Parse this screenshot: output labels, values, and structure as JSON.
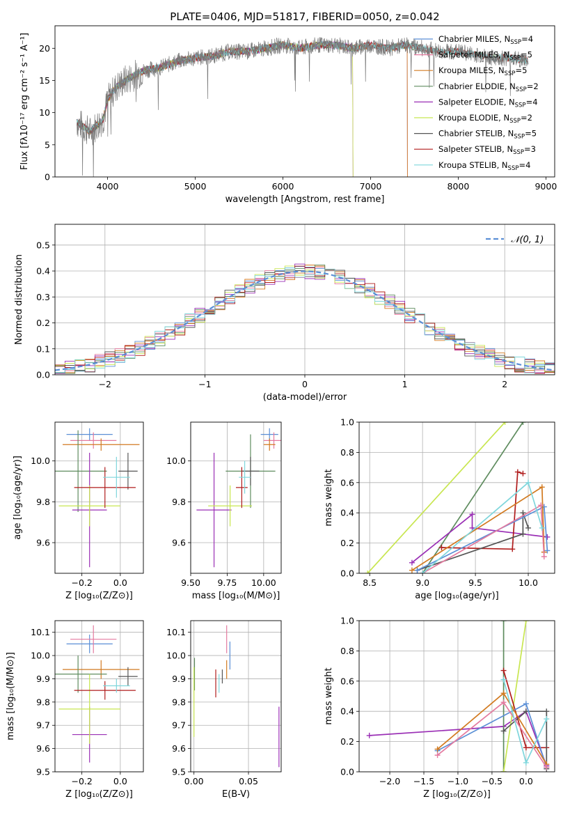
{
  "colors": {
    "c_miles": "#5b8fd6",
    "s_miles": "#e47a9f",
    "k_miles": "#d27a20",
    "c_elodie": "#5f8c5f",
    "s_elodie": "#9a2fb5",
    "k_elodie": "#c8e650",
    "c_stelib": "#555555",
    "s_stelib": "#b01c1c",
    "k_stelib": "#7fd6dc",
    "normal": "#5b8fd6"
  },
  "chart_data": [
    {
      "id": "spectrum",
      "type": "line",
      "title": "PLATE=0406, MJD=51817, FIBERID=0050, z=0.042",
      "xlabel": "wavelength [Angstrom, rest frame]",
      "ylabel": "Flux [fλ10⁻¹⁷ erg cm⁻² s⁻¹ A⁻¹]",
      "xlim": [
        3400,
        9100
      ],
      "ylim": [
        0,
        23.5
      ],
      "xticks": [
        "4000",
        "5000",
        "6000",
        "7000",
        "8000",
        "9000"
      ],
      "yticks": [
        "0",
        "5",
        "10",
        "15",
        "20"
      ],
      "grid": false,
      "legend_position": "top-right",
      "wavelength_range": [
        3650,
        8800
      ],
      "continuum": {
        "wavelength": [
          3650,
          3800,
          3950,
          4000,
          4100,
          4200,
          4400,
          4600,
          4800,
          5000,
          5200,
          5400,
          5600,
          5800,
          6000,
          6200,
          6400,
          6600,
          6800,
          7000,
          7200,
          7400,
          7600,
          7800,
          8000,
          8200,
          8400,
          8600,
          8800
        ],
        "flux": [
          8.5,
          7.0,
          9.0,
          12.0,
          14.0,
          15.0,
          16.5,
          17.0,
          18.0,
          18.5,
          18.8,
          19.5,
          19.5,
          20.0,
          20.5,
          20.0,
          20.5,
          20.5,
          20.0,
          20.5,
          20.0,
          20.5,
          20.0,
          19.5,
          19.5,
          19.0,
          18.5,
          18.5,
          18.0
        ]
      },
      "series": [
        {
          "name": "Chabrier MILES, N_SSP=4",
          "label_main": "Chabrier MILES, N",
          "label_sub": "SSP",
          "label_end": "=4",
          "color_key": "c_miles"
        },
        {
          "name": "Salpeter MILES, N_SSP=5",
          "label_main": "Salpeter MILES, N",
          "label_sub": "SSP",
          "label_end": "=5",
          "color_key": "s_miles"
        },
        {
          "name": "Kroupa MILES, N_SSP=5",
          "label_main": "Kroupa MILES, N",
          "label_sub": "SSP",
          "label_end": "=5",
          "color_key": "k_miles"
        },
        {
          "name": "Chabrier ELODIE, N_SSP=2",
          "label_main": "Chabrier ELODIE, N",
          "label_sub": "SSP",
          "label_end": "=2",
          "color_key": "c_elodie"
        },
        {
          "name": "Salpeter ELODIE, N_SSP=4",
          "label_main": "Salpeter ELODIE, N",
          "label_sub": "SSP",
          "label_end": "=4",
          "color_key": "s_elodie"
        },
        {
          "name": "Kroupa ELODIE, N_SSP=2",
          "label_main": "Kroupa ELODIE, N",
          "label_sub": "SSP",
          "label_end": "=2",
          "color_key": "k_elodie"
        },
        {
          "name": "Chabrier STELIB, N_SSP=5",
          "label_main": "Chabrier STELIB, N",
          "label_sub": "SSP",
          "label_end": "=5",
          "color_key": "c_stelib"
        },
        {
          "name": "Salpeter STELIB, N_SSP=3",
          "label_main": "Salpeter STELIB, N",
          "label_sub": "SSP",
          "label_end": "=3",
          "color_key": "s_stelib"
        },
        {
          "name": "Kroupa STELIB, N_SSP=4",
          "label_main": "Kroupa STELIB, N",
          "label_sub": "SSP",
          "label_end": "=4",
          "color_key": "k_stelib"
        }
      ],
      "model_edges": {
        "k_elodie": 6800,
        "s_elodie": 6800,
        "k_miles": 7420,
        "s_miles": 7420,
        "c_miles": 7420
      }
    },
    {
      "id": "residuals",
      "type": "histogram",
      "xlabel": "(data-model)/error",
      "ylabel": "Normed distribution",
      "xlim": [
        -2.5,
        2.5
      ],
      "ylim": [
        0,
        0.58
      ],
      "xticks": [
        "−2",
        "−1",
        "0",
        "1",
        "2"
      ],
      "yticks": [
        "0.0",
        "0.1",
        "0.2",
        "0.3",
        "0.4",
        "0.5"
      ],
      "grid": true,
      "legend_position": "top-right",
      "legend_label": "𝒩(0, 1)",
      "bin_width": 0.1
    },
    {
      "id": "age_vs_Z",
      "type": "errorbar",
      "xlabel": "Z [log₁₀(Z/Z⊙)]",
      "ylabel": "age  [log₁₀(age/yr)]",
      "xlim": [
        -0.34,
        0.12
      ],
      "ylim": [
        9.45,
        10.19
      ],
      "xticks": [
        "−0.2",
        "0.0"
      ],
      "yticks": [
        "9.6",
        "9.8",
        "10.0"
      ],
      "grid": true,
      "points": [
        {
          "s": "c_miles",
          "x": -0.16,
          "xerr": 0.12,
          "y": 10.13,
          "yerr": 0.03
        },
        {
          "s": "s_miles",
          "x": -0.14,
          "xerr": 0.12,
          "y": 10.1,
          "yerr": 0.04
        },
        {
          "s": "k_miles",
          "x": -0.1,
          "xerr": 0.2,
          "y": 10.08,
          "yerr": 0.03
        },
        {
          "s": "c_elodie",
          "x": -0.22,
          "xerr": 0.15,
          "y": 9.95,
          "yerr": 0.2
        },
        {
          "s": "s_elodie",
          "x": -0.16,
          "xerr": 0.09,
          "y": 9.76,
          "yerr": 0.28
        },
        {
          "s": "k_elodie",
          "x": -0.16,
          "xerr": 0.16,
          "y": 9.78,
          "yerr": 0.1
        },
        {
          "s": "c_stelib",
          "x": 0.04,
          "xerr": 0.05,
          "y": 9.95,
          "yerr": 0.09
        },
        {
          "s": "s_stelib",
          "x": -0.08,
          "xerr": 0.16,
          "y": 9.87,
          "yerr": 0.1
        },
        {
          "s": "k_stelib",
          "x": -0.02,
          "xerr": 0.07,
          "y": 9.92,
          "yerr": 0.1
        }
      ]
    },
    {
      "id": "age_vs_mass",
      "type": "errorbar",
      "xlabel": "mass [log₁₀(M/M⊙)]",
      "ylabel": "",
      "xlim": [
        9.5,
        10.12
      ],
      "ylim": [
        9.45,
        10.19
      ],
      "xticks": [
        "9.50",
        "9.75",
        "10.00"
      ],
      "yticks": [
        "9.6",
        "9.8",
        "10.0"
      ],
      "grid": true,
      "points": [
        {
          "s": "c_miles",
          "x": 10.04,
          "xerr": 0.06,
          "y": 10.13,
          "yerr": 0.03
        },
        {
          "s": "s_miles",
          "x": 10.07,
          "xerr": 0.07,
          "y": 10.1,
          "yerr": 0.04
        },
        {
          "s": "k_miles",
          "x": 10.04,
          "xerr": 0.04,
          "y": 10.08,
          "yerr": 0.03
        },
        {
          "s": "c_elodie",
          "x": 9.91,
          "xerr": 0.17,
          "y": 9.95,
          "yerr": 0.18
        },
        {
          "s": "s_elodie",
          "x": 9.66,
          "xerr": 0.12,
          "y": 9.76,
          "yerr": 0.28
        },
        {
          "s": "k_elodie",
          "x": 9.77,
          "xerr": 0.15,
          "y": 9.78,
          "yerr": 0.1
        },
        {
          "s": "c_stelib",
          "x": 9.91,
          "xerr": 0.06,
          "y": 9.95,
          "yerr": 0.07
        },
        {
          "s": "s_stelib",
          "x": 9.85,
          "xerr": 0.04,
          "y": 9.87,
          "yerr": 0.1
        },
        {
          "s": "k_stelib",
          "x": 9.87,
          "xerr": 0.04,
          "y": 9.92,
          "yerr": 0.08
        }
      ]
    },
    {
      "id": "weight_vs_age",
      "type": "line",
      "xlabel": "age  [log₁₀(age/yr)]",
      "ylabel": "mass weight",
      "xlim": [
        8.4,
        10.25
      ],
      "ylim": [
        0,
        1
      ],
      "xticks": [
        "8.5",
        "9.0",
        "9.5",
        "10.0"
      ],
      "yticks": [
        "0.0",
        "0.2",
        "0.4",
        "0.6",
        "0.8",
        "1.0"
      ],
      "grid": true,
      "series": [
        {
          "s": "k_elodie",
          "x": [
            8.48,
            9.78
          ],
          "y": [
            0.0,
            1.0
          ]
        },
        {
          "s": "c_elodie",
          "x": [
            9.0,
            9.95
          ],
          "y": [
            0.0,
            1.0
          ]
        },
        {
          "s": "s_elodie",
          "x": [
            8.9,
            9.47,
            9.47,
            10.18
          ],
          "y": [
            0.07,
            0.39,
            0.3,
            0.24
          ]
        },
        {
          "s": "s_stelib",
          "x": [
            9.18,
            9.85,
            9.9,
            9.95
          ],
          "y": [
            0.17,
            0.16,
            0.67,
            0.66
          ]
        },
        {
          "s": "c_stelib",
          "x": [
            8.95,
            9.95,
            9.95,
            10.0
          ],
          "y": [
            0.02,
            0.26,
            0.4,
            0.3
          ]
        },
        {
          "s": "c_miles",
          "x": [
            8.95,
            10.15,
            10.18
          ],
          "y": [
            0.02,
            0.44,
            0.15
          ]
        },
        {
          "s": "k_miles",
          "x": [
            8.9,
            10.13,
            10.15
          ],
          "y": [
            0.02,
            0.57,
            0.14
          ]
        },
        {
          "s": "s_miles",
          "x": [
            9.0,
            10.12,
            10.15
          ],
          "y": [
            0.0,
            0.45,
            0.11
          ]
        },
        {
          "s": "k_stelib",
          "x": [
            9.0,
            10.0,
            10.13
          ],
          "y": [
            0.0,
            0.6,
            0.3
          ]
        }
      ]
    },
    {
      "id": "mass_vs_Z",
      "type": "errorbar",
      "xlabel": "Z [log₁₀(Z/Z⊙)]",
      "ylabel": "mass [log₁₀(M/M⊙)]",
      "xlim": [
        -0.34,
        0.12
      ],
      "ylim": [
        9.5,
        10.15
      ],
      "xticks": [
        "−0.2",
        "0.0"
      ],
      "yticks": [
        "9.5",
        "9.6",
        "9.7",
        "9.8",
        "9.9",
        "10.0",
        "10.1"
      ],
      "grid": true,
      "points": [
        {
          "s": "c_miles",
          "x": -0.16,
          "xerr": 0.12,
          "y": 10.05,
          "yerr": 0.04
        },
        {
          "s": "s_miles",
          "x": -0.14,
          "xerr": 0.12,
          "y": 10.07,
          "yerr": 0.06
        },
        {
          "s": "k_miles",
          "x": -0.1,
          "xerr": 0.2,
          "y": 9.94,
          "yerr": 0.04
        },
        {
          "s": "c_elodie",
          "x": -0.22,
          "xerr": 0.15,
          "y": 9.92,
          "yerr": 0.08
        },
        {
          "s": "s_elodie",
          "x": -0.16,
          "xerr": 0.09,
          "y": 9.66,
          "yerr": 0.12
        },
        {
          "s": "k_elodie",
          "x": -0.16,
          "xerr": 0.16,
          "y": 9.77,
          "yerr": 0.15
        },
        {
          "s": "c_stelib",
          "x": 0.04,
          "xerr": 0.05,
          "y": 9.91,
          "yerr": 0.04
        },
        {
          "s": "s_stelib",
          "x": -0.08,
          "xerr": 0.16,
          "y": 9.85,
          "yerr": 0.04
        },
        {
          "s": "k_stelib",
          "x": -0.02,
          "xerr": 0.07,
          "y": 9.87,
          "yerr": 0.03
        }
      ]
    },
    {
      "id": "mass_vs_ebv",
      "type": "errorbar",
      "xlabel": "E(B-V)",
      "ylabel": "",
      "xlim": [
        -0.003,
        0.08
      ],
      "ylim": [
        9.5,
        10.15
      ],
      "xticks": [
        "0.00",
        "0.05"
      ],
      "yticks": [
        "9.5",
        "9.6",
        "9.7",
        "9.8",
        "9.9",
        "10.0",
        "10.1"
      ],
      "grid": true,
      "points": [
        {
          "s": "c_miles",
          "x": 0.033,
          "xerr": 0,
          "y": 10.0,
          "yerr": 0.06
        },
        {
          "s": "s_miles",
          "x": 0.03,
          "xerr": 0,
          "y": 10.07,
          "yerr": 0.06
        },
        {
          "s": "k_miles",
          "x": 0.03,
          "xerr": 0,
          "y": 9.94,
          "yerr": 0.04
        },
        {
          "s": "c_elodie",
          "x": 0.0005,
          "xerr": 0,
          "y": 9.92,
          "yerr": 0.07
        },
        {
          "s": "s_elodie",
          "x": 0.078,
          "xerr": 0,
          "y": 9.65,
          "yerr": 0.13
        },
        {
          "s": "k_elodie",
          "x": 0.0,
          "xerr": 0,
          "y": 9.8,
          "yerr": 0.15
        },
        {
          "s": "c_stelib",
          "x": 0.026,
          "xerr": 0,
          "y": 9.91,
          "yerr": 0.03
        },
        {
          "s": "s_stelib",
          "x": 0.02,
          "xerr": 0,
          "y": 9.88,
          "yerr": 0.06
        },
        {
          "s": "k_stelib",
          "x": 0.023,
          "xerr": 0,
          "y": 9.88,
          "yerr": 0.04
        }
      ]
    },
    {
      "id": "weight_vs_Z",
      "type": "line",
      "xlabel": "Z [log₁₀(Z/Z⊙)]",
      "ylabel": "mass weight",
      "xlim": [
        -2.45,
        0.42
      ],
      "ylim": [
        0,
        1
      ],
      "xticks": [
        "−2.0",
        "−1.5",
        "−1.0",
        "−0.5",
        "0.0"
      ],
      "yticks": [
        "0.0",
        "0.2",
        "0.4",
        "0.6",
        "0.8",
        "1.0"
      ],
      "grid": true,
      "series": [
        {
          "s": "s_elodie",
          "x": [
            -2.3,
            -0.33,
            0.0,
            0.3
          ],
          "y": [
            0.24,
            0.3,
            0.4,
            0.04
          ]
        },
        {
          "s": "c_elodie",
          "x": [
            -0.33,
            -0.33
          ],
          "y": [
            0.0,
            1.0
          ]
        },
        {
          "s": "k_elodie",
          "x": [
            -0.33,
            0.0
          ],
          "y": [
            0.0,
            1.0
          ]
        },
        {
          "s": "s_stelib",
          "x": [
            -0.33,
            0.0,
            0.3
          ],
          "y": [
            0.67,
            0.16,
            0.16
          ]
        },
        {
          "s": "c_stelib",
          "x": [
            -0.33,
            0.0,
            0.3,
            0.3
          ],
          "y": [
            0.27,
            0.4,
            0.4,
            0.02
          ]
        },
        {
          "s": "c_miles",
          "x": [
            -1.3,
            0.0,
            0.3
          ],
          "y": [
            0.14,
            0.45,
            0.03
          ]
        },
        {
          "s": "k_miles",
          "x": [
            -1.3,
            -0.33,
            0.3
          ],
          "y": [
            0.15,
            0.52,
            0.05
          ]
        },
        {
          "s": "s_miles",
          "x": [
            -1.3,
            -0.33,
            0.3
          ],
          "y": [
            0.11,
            0.46,
            0.03
          ]
        },
        {
          "s": "k_stelib",
          "x": [
            -0.33,
            0.0,
            0.3
          ],
          "y": [
            0.61,
            0.06,
            0.35
          ]
        }
      ]
    }
  ]
}
